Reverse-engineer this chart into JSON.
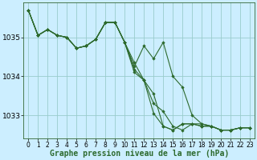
{
  "bg_color": "#cceeff",
  "grid_color": "#99cccc",
  "line_color": "#2d6a2d",
  "marker_color": "#2d6a2d",
  "xlabel": "Graphe pression niveau de la mer (hPa)",
  "xlabel_fontsize": 7,
  "xtick_fontsize": 5.5,
  "ytick_fontsize": 6.5,
  "xlim": [
    -0.5,
    23.5
  ],
  "ylim": [
    1032.4,
    1035.9
  ],
  "yticks": [
    1033,
    1034,
    1035
  ],
  "figsize": [
    3.2,
    2.0
  ],
  "dpi": 100,
  "series": [
    {
      "x": [
        0,
        1,
        2,
        3,
        4,
        5,
        6,
        7,
        8,
        9,
        10,
        11,
        12,
        13,
        14,
        15,
        16,
        17,
        18,
        19,
        20,
        21,
        22,
        23
      ],
      "y": [
        1035.7,
        1035.05,
        1035.2,
        1035.05,
        1035.0,
        1034.72,
        1034.78,
        1034.95,
        1035.38,
        1035.38,
        1034.87,
        1034.35,
        1033.9,
        1033.55,
        1032.72,
        1032.62,
        1032.78,
        1032.78,
        1032.72,
        1032.72,
        1032.62,
        1032.62,
        1032.68,
        1032.68
      ]
    },
    {
      "x": [
        0,
        1,
        2,
        3,
        4,
        5,
        6,
        7,
        8,
        9,
        10,
        11,
        12,
        13,
        14,
        15,
        16,
        17,
        18,
        19,
        20,
        21,
        22,
        23
      ],
      "y": [
        1035.7,
        1035.05,
        1035.2,
        1035.05,
        1035.0,
        1034.72,
        1034.78,
        1034.95,
        1035.38,
        1035.38,
        1034.87,
        1034.1,
        1033.9,
        1033.05,
        1032.72,
        1032.62,
        1032.78,
        1032.78,
        1032.72,
        1032.72,
        1032.62,
        1032.62,
        1032.68,
        1032.68
      ]
    },
    {
      "x": [
        0,
        1,
        2,
        3,
        4,
        5,
        6,
        7,
        8,
        9,
        10,
        11,
        12,
        13,
        14,
        15,
        16,
        17,
        18,
        19,
        20,
        21,
        22,
        23
      ],
      "y": [
        1035.7,
        1035.05,
        1035.2,
        1035.05,
        1035.0,
        1034.72,
        1034.78,
        1034.95,
        1035.38,
        1035.38,
        1034.87,
        1034.18,
        1033.9,
        1033.3,
        1033.1,
        1032.72,
        1032.62,
        1032.78,
        1032.78,
        1032.72,
        1032.62,
        1032.62,
        1032.68,
        1032.68
      ]
    },
    {
      "x": [
        0,
        1,
        2,
        3,
        4,
        5,
        6,
        7,
        8,
        9,
        10,
        11,
        12,
        13,
        14,
        15,
        16,
        17,
        18,
        19,
        20,
        21,
        22,
        23
      ],
      "y": [
        1035.7,
        1035.05,
        1035.2,
        1035.05,
        1035.0,
        1034.72,
        1034.78,
        1034.95,
        1035.38,
        1035.38,
        1034.87,
        1034.25,
        1034.78,
        1034.45,
        1034.87,
        1034.0,
        1033.72,
        1033.0,
        1032.78,
        1032.72,
        1032.62,
        1032.62,
        1032.68,
        1032.68
      ]
    }
  ]
}
